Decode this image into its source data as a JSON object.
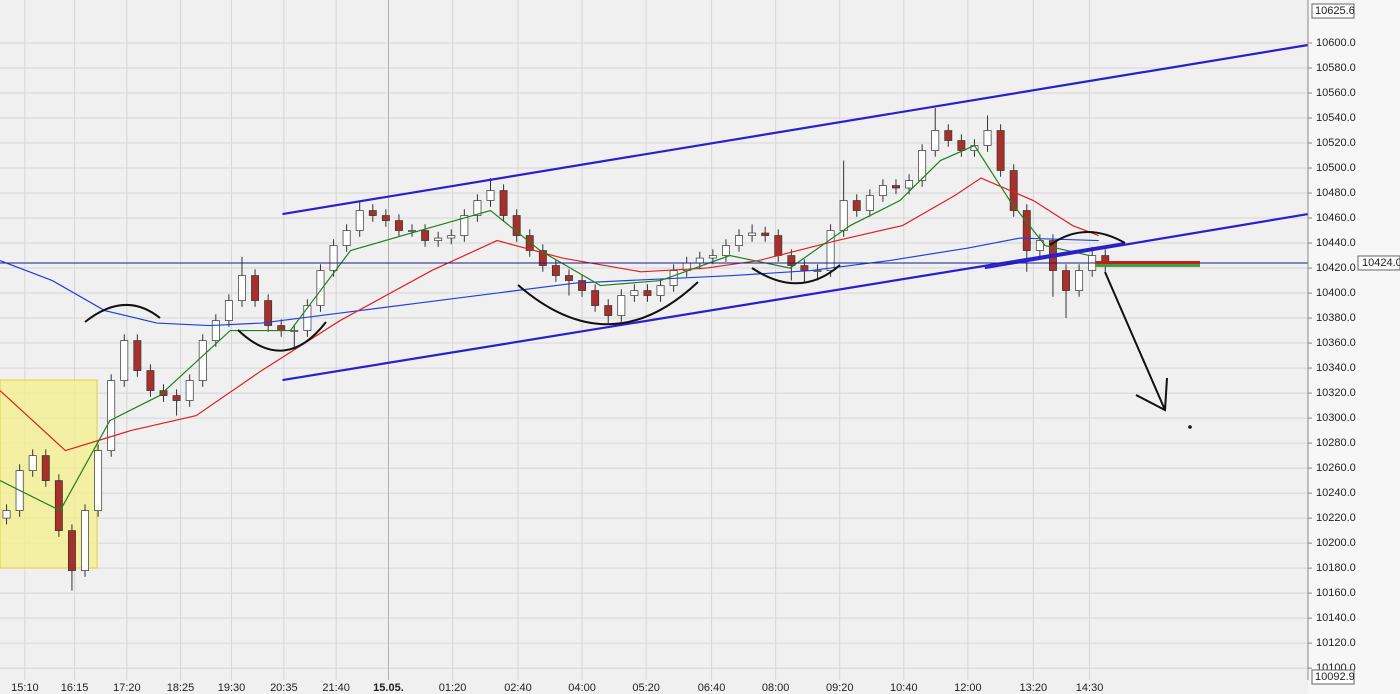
{
  "chart_data": {
    "type": "candlestick",
    "ylim": [
      10092.9,
      10625.6
    ],
    "xlim": [
      0,
      100
    ],
    "yticks": [
      {
        "value": 10100,
        "label": "10100.0"
      },
      {
        "value": 10120,
        "label": "10120.0"
      },
      {
        "value": 10140,
        "label": "10140.0"
      },
      {
        "value": 10160,
        "label": "10160.0"
      },
      {
        "value": 10180,
        "label": "10180.0"
      },
      {
        "value": 10200,
        "label": "10200.0"
      },
      {
        "value": 10220,
        "label": "10220.0"
      },
      {
        "value": 10240,
        "label": "10240.0"
      },
      {
        "value": 10260,
        "label": "10260.0"
      },
      {
        "value": 10280,
        "label": "10280.0"
      },
      {
        "value": 10300,
        "label": "10300.0"
      },
      {
        "value": 10320,
        "label": "10320.0"
      },
      {
        "value": 10340,
        "label": "10340.0"
      },
      {
        "value": 10360,
        "label": "10360.0"
      },
      {
        "value": 10380,
        "label": "10380.0"
      },
      {
        "value": 10400,
        "label": "10400.0"
      },
      {
        "value": 10420,
        "label": "10420.0"
      },
      {
        "value": 10440,
        "label": "10440.0"
      },
      {
        "value": 10460,
        "label": "10460.0"
      },
      {
        "value": 10480,
        "label": "10480.0"
      },
      {
        "value": 10500,
        "label": "10500.0"
      },
      {
        "value": 10520,
        "label": "10520.0"
      },
      {
        "value": 10540,
        "label": "10540.0"
      },
      {
        "value": 10560,
        "label": "10560.0"
      },
      {
        "value": 10580,
        "label": "10580.0"
      },
      {
        "value": 10600,
        "label": "10600.0"
      }
    ],
    "xticks": [
      {
        "value": 1.9,
        "label": "15:10"
      },
      {
        "value": 5.7,
        "label": "16:15"
      },
      {
        "value": 9.7,
        "label": "17:20"
      },
      {
        "value": 13.8,
        "label": "18:25"
      },
      {
        "value": 17.7,
        "label": "19:30"
      },
      {
        "value": 21.7,
        "label": "20:35"
      },
      {
        "value": 25.7,
        "label": "21:40"
      },
      {
        "value": 29.7,
        "label": "15.05."
      },
      {
        "value": 34.6,
        "label": "01:20"
      },
      {
        "value": 39.6,
        "label": "02:40"
      },
      {
        "value": 44.5,
        "label": "04:00"
      },
      {
        "value": 49.4,
        "label": "05:20"
      },
      {
        "value": 54.4,
        "label": "06:40"
      },
      {
        "value": 59.3,
        "label": "08:00"
      },
      {
        "value": 64.2,
        "label": "09:20"
      },
      {
        "value": 69.1,
        "label": "10:40"
      },
      {
        "value": 74,
        "label": "12:00"
      },
      {
        "value": 79,
        "label": "13:20"
      },
      {
        "value": 83.3,
        "label": "14:30"
      }
    ],
    "grid": true,
    "up_color": "#ffffff",
    "down_color": "#a8302a",
    "open": [
      10220,
      10226,
      10258,
      10270,
      10250,
      10210,
      10178,
      10226,
      10274,
      10330,
      10362,
      10338,
      10322,
      10318,
      10314,
      10330,
      10362,
      10378,
      10394,
      10414,
      10394,
      10374,
      10370,
      10370,
      10390,
      10418,
      10438,
      10450,
      10466,
      10462,
      10458,
      10450,
      10450,
      10442,
      10444,
      10446,
      10462,
      10474,
      10482,
      10462,
      10446,
      10434,
      10422,
      10414,
      10410,
      10402,
      10390,
      10382,
      10398,
      10402,
      10398,
      10406,
      10418,
      10424,
      10428,
      10430,
      10438,
      10446,
      10448,
      10446,
      10430,
      10422,
      10418,
      10418,
      10450,
      10474,
      10466,
      10478,
      10486,
      10484,
      10490,
      10514,
      10530,
      10522,
      10514,
      10518,
      10530,
      10498,
      10466,
      10434,
      10442,
      10418,
      10402,
      10418,
      10430
    ],
    "high": [
      10231,
      10263,
      10275,
      10275,
      10255,
      10215,
      10231,
      10279,
      10335,
      10367,
      10367,
      10343,
      10327,
      10323,
      10335,
      10367,
      10383,
      10399,
      10429,
      10419,
      10399,
      10379,
      10375,
      10395,
      10423,
      10443,
      10455,
      10474,
      10471,
      10467,
      10463,
      10455,
      10455,
      10449,
      10451,
      10467,
      10479,
      10492,
      10487,
      10467,
      10451,
      10439,
      10427,
      10419,
      10415,
      10407,
      10395,
      10403,
      10407,
      10407,
      10411,
      10423,
      10429,
      10433,
      10435,
      10443,
      10451,
      10455,
      10453,
      10451,
      10435,
      10427,
      10423,
      10455,
      10506,
      10479,
      10483,
      10491,
      10491,
      10495,
      10519,
      10548,
      10535,
      10527,
      10523,
      10542,
      10535,
      10503,
      10471,
      10447,
      10447,
      10423,
      10423,
      10437,
      10435
    ],
    "low": [
      10215,
      10221,
      10253,
      10245,
      10205,
      10162,
      10173,
      10221,
      10269,
      10325,
      10333,
      10317,
      10313,
      10302,
      10309,
      10325,
      10357,
      10373,
      10389,
      10389,
      10369,
      10365,
      10356,
      10365,
      10385,
      10413,
      10433,
      10445,
      10457,
      10453,
      10445,
      10445,
      10437,
      10437,
      10439,
      10441,
      10457,
      10469,
      10457,
      10441,
      10429,
      10417,
      10409,
      10398,
      10397,
      10385,
      10376,
      10377,
      10393,
      10393,
      10393,
      10401,
      10413,
      10419,
      10423,
      10425,
      10433,
      10441,
      10441,
      10425,
      10410,
      10408,
      10410,
      10413,
      10445,
      10461,
      10461,
      10473,
      10479,
      10479,
      10485,
      10509,
      10517,
      10509,
      10509,
      10513,
      10493,
      10461,
      10417,
      10429,
      10397,
      10380,
      10397,
      10413,
      10417
    ],
    "close": [
      10226,
      10258,
      10270,
      10250,
      10210,
      10178,
      10226,
      10274,
      10330,
      10362,
      10338,
      10322,
      10318,
      10314,
      10330,
      10362,
      10378,
      10394,
      10414,
      10394,
      10374,
      10370,
      10370,
      10390,
      10418,
      10438,
      10450,
      10466,
      10462,
      10458,
      10450,
      10450,
      10442,
      10444,
      10446,
      10462,
      10474,
      10482,
      10462,
      10446,
      10434,
      10422,
      10414,
      10410,
      10402,
      10390,
      10382,
      10398,
      10402,
      10398,
      10406,
      10418,
      10424,
      10428,
      10430,
      10438,
      10446,
      10448,
      10446,
      10430,
      10422,
      10418,
      10418,
      10450,
      10474,
      10466,
      10478,
      10486,
      10484,
      10490,
      10514,
      10530,
      10522,
      10514,
      10518,
      10530,
      10498,
      10466,
      10434,
      10442,
      10418,
      10402,
      10418,
      10430,
      10422
    ],
    "series": [
      {
        "color": "#2040e0",
        "x": [
          0,
          4,
          8,
          12,
          16,
          20,
          26,
          32,
          38,
          44,
          50,
          56,
          62,
          68,
          74,
          78,
          84
        ],
        "values": [
          10426,
          10410,
          10386,
          10376,
          10374,
          10376,
          10384,
          10392,
          10400,
          10408,
          10411,
          10414,
          10418,
          10426,
          10436,
          10444,
          10442
        ]
      },
      {
        "color": "#e02020",
        "x": [
          0,
          5,
          10,
          15,
          20,
          26,
          33,
          38,
          43,
          49,
          54,
          58,
          64,
          69,
          73,
          75,
          79,
          82,
          84
        ],
        "values": [
          10322,
          10274,
          10290,
          10302,
          10338,
          10378,
          10418,
          10442,
          10428,
          10417,
          10420,
          10426,
          10442,
          10454,
          10478,
          10492,
          10474,
          10454,
          10446
        ]
      },
      {
        "color": "#208020",
        "x": [
          0,
          4.6,
          8.4,
          12.2,
          17.6,
          22.2,
          26.8,
          32.1,
          37.5,
          41.3,
          45.9,
          50.5,
          55.8,
          60.4,
          65,
          68.8,
          71.9,
          74.5,
          77.2,
          79.9,
          83.3
        ],
        "values": [
          10250,
          10226,
          10298,
          10318,
          10370,
          10370,
          10434,
          10450,
          10466,
          10434,
          10406,
          10410,
          10430,
          10420,
          10454,
          10474,
          10506,
          10518,
          10474,
          10438,
          10430
        ]
      }
    ],
    "trendlines": [
      {
        "x": [
          21.6,
          100
        ],
        "y": [
          10463.2,
          10598.4
        ]
      },
      {
        "x": [
          21.6,
          86
        ],
        "y": [
          10330.4,
          10440
        ]
      },
      {
        "x": [
          75.3,
          100
        ],
        "y": [
          10420,
          10463.2
        ]
      }
    ],
    "last_price": 10424.04
  }
}
